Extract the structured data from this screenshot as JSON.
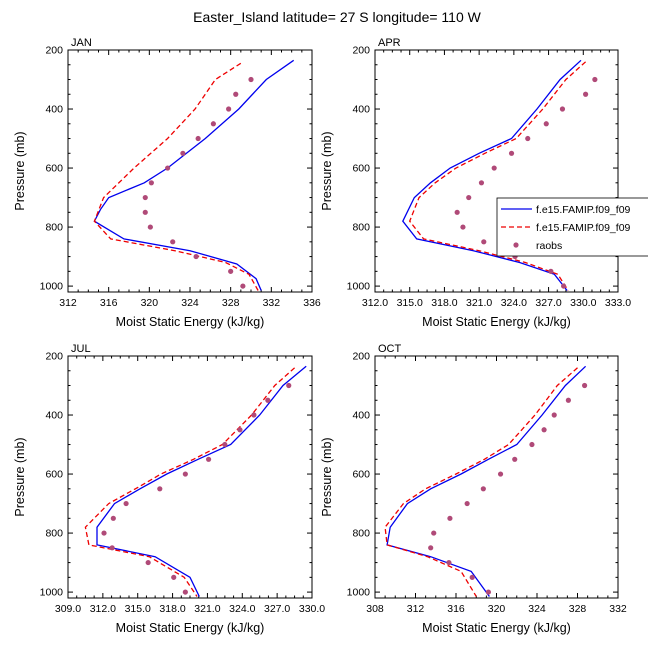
{
  "figure_title": "Easter_Island  latitude= 27 S longitude= 110 W",
  "colors": {
    "model1": "#0000ee",
    "model2": "#ee0000",
    "raobs": "#b04a78",
    "axis": "#000000"
  },
  "legend": {
    "panel": "APR",
    "placement": "right",
    "entries": [
      {
        "label": "f.e15.FAMIP.f09_f09",
        "style": "solid",
        "color": "#0000ee"
      },
      {
        "label": "f.e15.FAMIP.f09_f09",
        "style": "dashed",
        "color": "#ee0000"
      },
      {
        "label": "raobs",
        "style": "dots",
        "color": "#b04a78"
      }
    ]
  },
  "chart_data": [
    {
      "type": "line",
      "title": "JAN",
      "xlabel": "Moist Static Energy (kJ/kg)",
      "ylabel": "Pressure (mb)",
      "xlim": [
        312,
        336
      ],
      "ylim": [
        1020,
        200
      ],
      "xticks": [
        "312",
        "316",
        "320",
        "324",
        "328",
        "332",
        "336"
      ],
      "yticks": [
        "200",
        "400",
        "600",
        "800",
        "1000"
      ],
      "series": [
        {
          "name": "f.e15.FAMIP.f09_f09",
          "style": "solid",
          "color": "#0000ee",
          "points": [
            [
              334.2,
              235
            ],
            [
              331.5,
              300
            ],
            [
              328.8,
              400
            ],
            [
              325.5,
              500
            ],
            [
              321.8,
              600
            ],
            [
              319.5,
              650
            ],
            [
              316,
              700
            ],
            [
              315.2,
              740
            ],
            [
              314.6,
              780
            ],
            [
              317.5,
              840
            ],
            [
              324,
              880
            ],
            [
              328.6,
              925
            ],
            [
              330.5,
              975
            ],
            [
              331.0,
              1015
            ]
          ]
        },
        {
          "name": "f.e15.FAMIP.f09_f09",
          "style": "dashed",
          "color": "#ee0000",
          "points": [
            [
              329,
              245
            ],
            [
              326.5,
              300
            ],
            [
              324.5,
              400
            ],
            [
              321.8,
              500
            ],
            [
              318.5,
              600
            ],
            [
              315.5,
              700
            ],
            [
              314.6,
              780
            ],
            [
              316.2,
              840
            ],
            [
              322.5,
              880
            ],
            [
              327.5,
              920
            ],
            [
              329.8,
              960
            ],
            [
              330.7,
              1015
            ]
          ]
        }
      ],
      "raobs": [
        [
          330,
          300
        ],
        [
          328.5,
          350
        ],
        [
          327.8,
          400
        ],
        [
          326.3,
          450
        ],
        [
          324.8,
          500
        ],
        [
          323.3,
          550
        ],
        [
          321.8,
          600
        ],
        [
          320.2,
          650
        ],
        [
          319.6,
          700
        ],
        [
          319.6,
          750
        ],
        [
          320.1,
          800
        ],
        [
          322.3,
          850
        ],
        [
          324.6,
          900
        ],
        [
          328,
          950
        ],
        [
          329.2,
          1000
        ]
      ]
    },
    {
      "type": "line",
      "title": "APR",
      "xlabel": "Moist Static Energy (kJ/kg)",
      "ylabel": "Pressure (mb)",
      "xlim": [
        312,
        333
      ],
      "ylim": [
        1020,
        200
      ],
      "xticks": [
        "312.0",
        "315.0",
        "318.0",
        "321.0",
        "324.0",
        "327.0",
        "330.0",
        "333.0"
      ],
      "yticks": [
        "200",
        "400",
        "600",
        "800",
        "1000"
      ],
      "series": [
        {
          "name": "f.e15.FAMIP.f09_f09",
          "style": "solid",
          "color": "#0000ee",
          "points": [
            [
              329.8,
              235
            ],
            [
              328,
              300
            ],
            [
              326,
              400
            ],
            [
              323.8,
              500
            ],
            [
              321,
              550
            ],
            [
              318.5,
              600
            ],
            [
              316.8,
              650
            ],
            [
              315.4,
              700
            ],
            [
              314.4,
              780
            ],
            [
              315.6,
              840
            ],
            [
              320.5,
              880
            ],
            [
              324.5,
              920
            ],
            [
              327.5,
              960
            ],
            [
              328.6,
              1015
            ]
          ]
        },
        {
          "name": "f.e15.FAMIP.f09_f09",
          "style": "dashed",
          "color": "#ee0000",
          "points": [
            [
              330.2,
              240
            ],
            [
              328.5,
              300
            ],
            [
              326.5,
              400
            ],
            [
              324.2,
              500
            ],
            [
              321.5,
              550
            ],
            [
              319,
              600
            ],
            [
              317.2,
              650
            ],
            [
              315.8,
              700
            ],
            [
              315,
              780
            ],
            [
              316.2,
              840
            ],
            [
              321,
              880
            ],
            [
              325,
              920
            ],
            [
              327.8,
              960
            ],
            [
              328.7,
              1015
            ]
          ]
        }
      ],
      "raobs": [
        [
          331,
          300
        ],
        [
          330.2,
          350
        ],
        [
          328.2,
          400
        ],
        [
          326.8,
          450
        ],
        [
          325.2,
          500
        ],
        [
          323.8,
          550
        ],
        [
          322.3,
          600
        ],
        [
          321.2,
          650
        ],
        [
          320.1,
          700
        ],
        [
          319.1,
          750
        ],
        [
          319.6,
          800
        ],
        [
          321.4,
          850
        ],
        [
          324.1,
          900
        ],
        [
          327.2,
          950
        ],
        [
          328.3,
          1000
        ]
      ]
    },
    {
      "type": "line",
      "title": "JUL",
      "xlabel": "Moist Static Energy (kJ/kg)",
      "ylabel": "Pressure (mb)",
      "xlim": [
        309,
        330
      ],
      "ylim": [
        1020,
        200
      ],
      "xticks": [
        "309.0",
        "312.0",
        "315.0",
        "318.0",
        "321.0",
        "324.0",
        "327.0",
        "330.0"
      ],
      "yticks": [
        "200",
        "400",
        "600",
        "800",
        "1000"
      ],
      "series": [
        {
          "name": "f.e15.FAMIP.f09_f09",
          "style": "solid",
          "color": "#0000ee",
          "points": [
            [
              329.5,
              235
            ],
            [
              327.5,
              300
            ],
            [
              325.5,
              400
            ],
            [
              323,
              500
            ],
            [
              320.2,
              550
            ],
            [
              317.5,
              600
            ],
            [
              315.2,
              650
            ],
            [
              313,
              700
            ],
            [
              311.5,
              780
            ],
            [
              311.5,
              840
            ],
            [
              316.5,
              880
            ],
            [
              319.5,
              950
            ],
            [
              320.3,
              1015
            ]
          ]
        },
        {
          "name": "f.e15.FAMIP.f09_f09",
          "style": "dashed",
          "color": "#ee0000",
          "points": [
            [
              328.5,
              240
            ],
            [
              326.8,
              300
            ],
            [
              324.8,
              400
            ],
            [
              322.3,
              500
            ],
            [
              319.8,
              550
            ],
            [
              317,
              600
            ],
            [
              314.8,
              650
            ],
            [
              312.5,
              700
            ],
            [
              310.5,
              780
            ],
            [
              310.8,
              840
            ],
            [
              316,
              880
            ],
            [
              319,
              950
            ],
            [
              320.1,
              1015
            ]
          ]
        }
      ],
      "raobs": [
        [
          328,
          300
        ],
        [
          326.2,
          350
        ],
        [
          325,
          400
        ],
        [
          323.8,
          450
        ],
        [
          322.5,
          500
        ],
        [
          321.1,
          550
        ],
        [
          319.1,
          600
        ],
        [
          316.9,
          650
        ],
        [
          314,
          700
        ],
        [
          312.9,
          750
        ],
        [
          312.1,
          800
        ],
        [
          312.8,
          850
        ],
        [
          315.9,
          900
        ],
        [
          318.1,
          950
        ],
        [
          319.1,
          1000
        ]
      ]
    },
    {
      "type": "line",
      "title": "OCT",
      "xlabel": "Moist Static Energy (kJ/kg)",
      "ylabel": "Pressure (mb)",
      "xlim": [
        308,
        332
      ],
      "ylim": [
        1020,
        200
      ],
      "xticks": [
        "308",
        "312",
        "316",
        "320",
        "324",
        "328",
        "332"
      ],
      "yticks": [
        "200",
        "400",
        "600",
        "800",
        "1000"
      ],
      "series": [
        {
          "name": "f.e15.FAMIP.f09_f09",
          "style": "solid",
          "color": "#0000ee",
          "points": [
            [
              328.8,
              235
            ],
            [
              326.8,
              300
            ],
            [
              324.5,
              400
            ],
            [
              322,
              500
            ],
            [
              319.2,
              550
            ],
            [
              316.5,
              600
            ],
            [
              313.5,
              650
            ],
            [
              311.2,
              700
            ],
            [
              309.5,
              780
            ],
            [
              309.2,
              840
            ],
            [
              313.5,
              880
            ],
            [
              317.5,
              930
            ],
            [
              319.3,
              1015
            ]
          ]
        },
        {
          "name": "f.e15.FAMIP.f09_f09",
          "style": "dashed",
          "color": "#ee0000",
          "points": [
            [
              328,
              240
            ],
            [
              326,
              300
            ],
            [
              323.8,
              400
            ],
            [
              321.2,
              500
            ],
            [
              318.8,
              550
            ],
            [
              316,
              600
            ],
            [
              313,
              650
            ],
            [
              310.8,
              700
            ],
            [
              309,
              780
            ],
            [
              309.2,
              840
            ],
            [
              313.2,
              880
            ],
            [
              316.5,
              930
            ],
            [
              318,
              1015
            ]
          ]
        }
      ],
      "raobs": [
        [
          328.7,
          300
        ],
        [
          327.1,
          350
        ],
        [
          325.7,
          400
        ],
        [
          324.7,
          450
        ],
        [
          323.5,
          500
        ],
        [
          321.8,
          550
        ],
        [
          320.4,
          600
        ],
        [
          318.7,
          650
        ],
        [
          317.1,
          700
        ],
        [
          315.4,
          750
        ],
        [
          313.8,
          800
        ],
        [
          313.5,
          850
        ],
        [
          315.3,
          900
        ],
        [
          317.6,
          950
        ],
        [
          319.2,
          1000
        ]
      ]
    }
  ]
}
